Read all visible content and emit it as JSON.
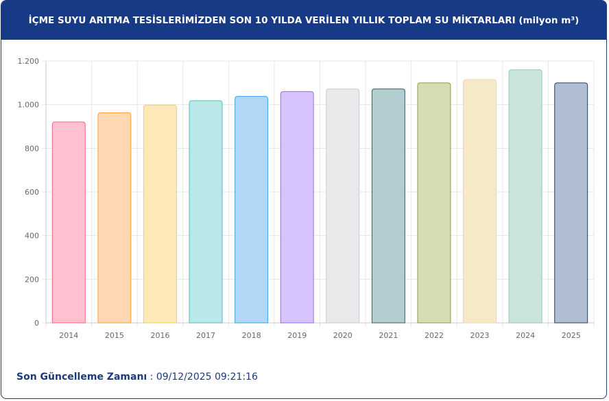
{
  "header": {
    "title": "İÇME SUYU ARITMA TESİSLERİMİZDEN SON 10 YILDA VERİLEN YILLIK TOPLAM SU MİKTARLARI (milyon m³)"
  },
  "chart_data": {
    "type": "bar",
    "categories": [
      "2014",
      "2015",
      "2016",
      "2017",
      "2018",
      "2019",
      "2020",
      "2021",
      "2022",
      "2023",
      "2024",
      "2025"
    ],
    "values": [
      921,
      963,
      998,
      1018,
      1038,
      1060,
      1072,
      1072,
      1100,
      1115,
      1160,
      1100
    ],
    "ylim": [
      0,
      1200
    ],
    "yticks": [
      0,
      200,
      400,
      600,
      800,
      1000,
      1200
    ],
    "ytick_labels": [
      "0",
      "200",
      "400",
      "600",
      "800",
      "1.000",
      "1.200"
    ],
    "grid": true,
    "bar_fills": [
      "#ffc1cf",
      "#ffd7b0",
      "#ffe9b8",
      "#b8e8e8",
      "#b0d8f6",
      "#d7c4fd",
      "#e8e9eb",
      "#b3cdd0",
      "#d6dcb4",
      "#f6e9c8",
      "#c9e4dc",
      "#b1bed2"
    ],
    "bar_strokes": [
      "#ff6384",
      "#ff9f40",
      "#ffcd56",
      "#4bc0c0",
      "#36a2eb",
      "#9966ff",
      "#c9cbcf",
      "#2f5e64",
      "#8a9a4c",
      "#f0d89a",
      "#8fcab6",
      "#2a3d66"
    ]
  },
  "footer": {
    "label": "Son Güncelleme Zamanı",
    "separator": " : ",
    "value": "09/12/2025 09:21:16"
  }
}
